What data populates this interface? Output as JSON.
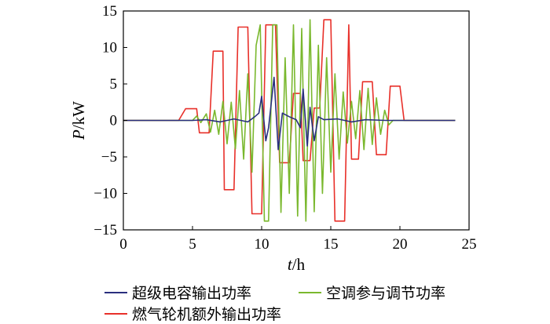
{
  "chart_data": {
    "type": "line",
    "xlabel": {
      "var": "t",
      "unit": "/h"
    },
    "ylabel": {
      "var": "P",
      "unit": "/kW"
    },
    "xlim": [
      0,
      25
    ],
    "ylim": [
      -15,
      15
    ],
    "x_ticks": [
      0,
      5,
      10,
      15,
      20,
      25
    ],
    "y_ticks": [
      -15,
      -10,
      -5,
      0,
      5,
      10,
      15
    ],
    "grid": false,
    "legend_placement": "bottom",
    "series": [
      {
        "name": "燃气轮机额外输出功率",
        "color": "#e8302a",
        "points": [
          [
            0,
            0
          ],
          [
            4.0,
            0
          ],
          [
            4.5,
            1.6
          ],
          [
            5.3,
            1.6
          ],
          [
            5.5,
            -1.7
          ],
          [
            6.2,
            -1.7
          ],
          [
            6.5,
            9.5
          ],
          [
            7.2,
            9.5
          ],
          [
            7.3,
            -9.5
          ],
          [
            8.0,
            -9.5
          ],
          [
            8.3,
            12.8
          ],
          [
            9.0,
            12.8
          ],
          [
            9.3,
            -12.8
          ],
          [
            10.0,
            -12.8
          ],
          [
            10.3,
            13.1
          ],
          [
            11.0,
            13.1
          ],
          [
            11.3,
            -5.8
          ],
          [
            12.0,
            -5.8
          ],
          [
            12.3,
            3.7
          ],
          [
            12.8,
            3.7
          ],
          [
            13.0,
            -5.5
          ],
          [
            13.5,
            -5.5
          ],
          [
            13.8,
            1.7
          ],
          [
            14.2,
            1.7
          ],
          [
            14.5,
            13.8
          ],
          [
            15.0,
            13.8
          ],
          [
            15.3,
            -13.8
          ],
          [
            16.0,
            -13.8
          ],
          [
            16.3,
            13.1
          ],
          [
            16.5,
            -5.3
          ],
          [
            17.0,
            -5.3
          ],
          [
            17.3,
            5.3
          ],
          [
            18.0,
            5.3
          ],
          [
            18.3,
            -4.7
          ],
          [
            19.0,
            -4.7
          ],
          [
            19.3,
            4.7
          ],
          [
            20.0,
            4.7
          ],
          [
            20.3,
            0
          ],
          [
            24,
            0
          ]
        ]
      },
      {
        "name": "空调参与调节功率",
        "color": "#7ab82e",
        "points": [
          [
            0,
            0
          ],
          [
            5.0,
            0
          ],
          [
            5.3,
            0.6
          ],
          [
            5.6,
            -0.3
          ],
          [
            6.0,
            0.9
          ],
          [
            6.3,
            -1.6
          ],
          [
            6.6,
            1.4
          ],
          [
            6.9,
            -1.9
          ],
          [
            7.2,
            2.6
          ],
          [
            7.5,
            -3.2
          ],
          [
            7.8,
            2.5
          ],
          [
            8.1,
            -3.9
          ],
          [
            8.4,
            4.1
          ],
          [
            8.7,
            -5.3
          ],
          [
            9.0,
            6.4
          ],
          [
            9.3,
            -7.1
          ],
          [
            9.6,
            10.3
          ],
          [
            9.9,
            13.1
          ],
          [
            10.2,
            -13.8
          ],
          [
            10.5,
            -13.8
          ],
          [
            10.8,
            13.1
          ],
          [
            11.1,
            13.1
          ],
          [
            11.4,
            -12.6
          ],
          [
            11.7,
            8.6
          ],
          [
            12.0,
            -10.0
          ],
          [
            12.3,
            13.1
          ],
          [
            12.6,
            -13.1
          ],
          [
            12.9,
            12.6
          ],
          [
            13.2,
            -13.8
          ],
          [
            13.5,
            13.8
          ],
          [
            13.8,
            -12.5
          ],
          [
            14.1,
            10.3
          ],
          [
            14.4,
            -10.0
          ],
          [
            14.7,
            8.6
          ],
          [
            15.0,
            -7.1
          ],
          [
            15.3,
            6.4
          ],
          [
            15.6,
            -5.3
          ],
          [
            15.9,
            3.9
          ],
          [
            16.2,
            -3.1
          ],
          [
            16.5,
            2.6
          ],
          [
            16.8,
            -2.5
          ],
          [
            17.1,
            4.1
          ],
          [
            17.4,
            -4.0
          ],
          [
            17.7,
            4.4
          ],
          [
            18.0,
            -3.3
          ],
          [
            18.3,
            3.1
          ],
          [
            18.6,
            -1.9
          ],
          [
            18.9,
            1.4
          ],
          [
            19.2,
            -0.6
          ],
          [
            19.5,
            0
          ],
          [
            24,
            0
          ]
        ]
      },
      {
        "name": "超级电容输出功率",
        "color": "#2a2f7e",
        "points": [
          [
            0,
            0
          ],
          [
            5.0,
            0
          ],
          [
            6.0,
            0.1
          ],
          [
            7.0,
            -0.2
          ],
          [
            8.0,
            0.2
          ],
          [
            9.0,
            -0.2
          ],
          [
            9.5,
            0.5
          ],
          [
            9.8,
            1.0
          ],
          [
            10.0,
            3.3
          ],
          [
            10.3,
            -2.8
          ],
          [
            10.5,
            -1.0
          ],
          [
            10.9,
            5.9
          ],
          [
            11.2,
            -4.0
          ],
          [
            11.5,
            1.0
          ],
          [
            12.0,
            0.5
          ],
          [
            12.5,
            0.1
          ],
          [
            12.8,
            -1.0
          ],
          [
            13.0,
            4.3
          ],
          [
            13.3,
            -3.5
          ],
          [
            13.5,
            1.8
          ],
          [
            13.8,
            -2.8
          ],
          [
            14.1,
            0.5
          ],
          [
            14.5,
            0.1
          ],
          [
            15.5,
            0.2
          ],
          [
            16.5,
            -0.2
          ],
          [
            17.5,
            0.1
          ],
          [
            19.0,
            0
          ],
          [
            24,
            0
          ]
        ]
      }
    ]
  },
  "legend": {
    "items": [
      {
        "label": "超级电容输出功率",
        "color": "#2a2f7e"
      },
      {
        "label": "空调参与调节功率",
        "color": "#7ab82e"
      },
      {
        "label": "燃气轮机额外输出功率",
        "color": "#e8302a"
      }
    ]
  }
}
